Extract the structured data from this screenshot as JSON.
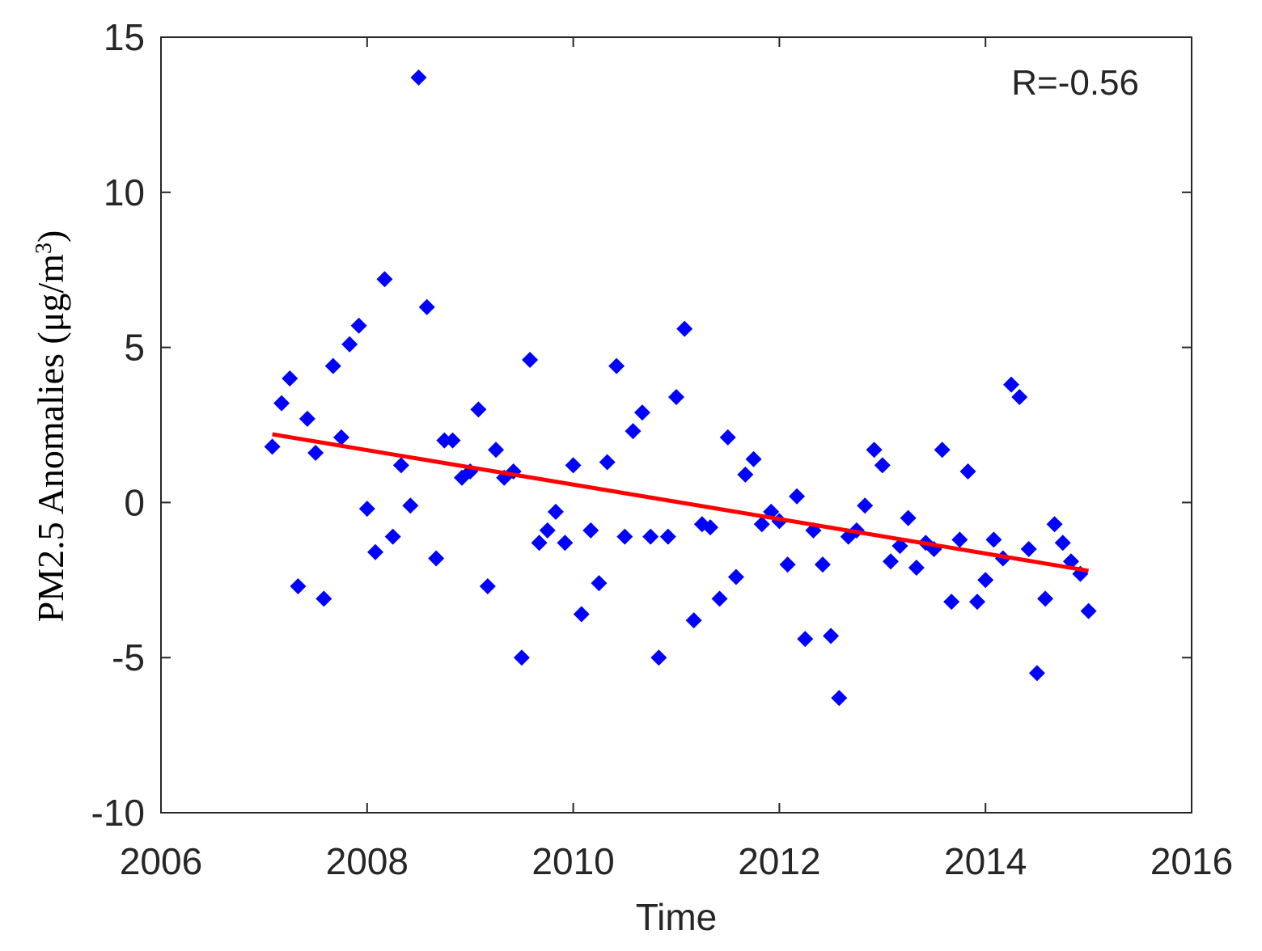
{
  "chart_data": {
    "type": "scatter",
    "title": "",
    "xlabel": "Time",
    "ylabel": {
      "text": "PM2.5 Anomalies (μg/m",
      "superscript": "3",
      "suffix": ")"
    },
    "xlim": [
      2006,
      2016
    ],
    "ylim": [
      -10,
      15
    ],
    "xticks": [
      "2006",
      "2008",
      "2010",
      "2012",
      "2014",
      "2016"
    ],
    "yticks": [
      "-10",
      "-5",
      "0",
      "5",
      "10",
      "15"
    ],
    "grid": false,
    "annotation": "R=-0.56",
    "colors": {
      "points": "#0000ff",
      "trend": "#ff0000",
      "axes": "#262626"
    },
    "series": [
      {
        "type": "scatter",
        "marker": "diamond",
        "x": [
          2007.08,
          2007.17,
          2007.25,
          2007.33,
          2007.42,
          2007.5,
          2007.58,
          2007.67,
          2007.75,
          2007.83,
          2007.92,
          2008.0,
          2008.08,
          2008.17,
          2008.25,
          2008.33,
          2008.42,
          2008.5,
          2008.58,
          2008.67,
          2008.75,
          2008.83,
          2008.92,
          2009.0,
          2009.08,
          2009.17,
          2009.25,
          2009.33,
          2009.42,
          2009.5,
          2009.58,
          2009.67,
          2009.75,
          2009.83,
          2009.92,
          2010.0,
          2010.08,
          2010.17,
          2010.25,
          2010.33,
          2010.42,
          2010.5,
          2010.58,
          2010.67,
          2010.75,
          2010.83,
          2010.92,
          2011.0,
          2011.08,
          2011.17,
          2011.25,
          2011.33,
          2011.42,
          2011.5,
          2011.58,
          2011.67,
          2011.75,
          2011.83,
          2011.92,
          2012.0,
          2012.08,
          2012.17,
          2012.25,
          2012.33,
          2012.42,
          2012.5,
          2012.58,
          2012.67,
          2012.75,
          2012.83,
          2012.92,
          2013.0,
          2013.08,
          2013.17,
          2013.25,
          2013.33,
          2013.42,
          2013.5,
          2013.58,
          2013.67,
          2013.75,
          2013.83,
          2013.92,
          2014.0,
          2014.08,
          2014.17,
          2014.25,
          2014.33,
          2014.42,
          2014.5,
          2014.58,
          2014.67,
          2014.75,
          2014.83,
          2014.92,
          2015.0
        ],
        "y": [
          1.8,
          3.2,
          4.0,
          -2.7,
          2.7,
          1.6,
          -3.1,
          4.4,
          2.1,
          5.1,
          5.7,
          -0.2,
          -1.6,
          7.2,
          -1.1,
          1.2,
          -0.1,
          13.7,
          6.3,
          -1.8,
          2.0,
          2.0,
          0.8,
          1.0,
          3.0,
          -2.7,
          1.7,
          0.8,
          1.0,
          -5.0,
          4.6,
          -1.3,
          -0.9,
          -0.3,
          -1.3,
          1.2,
          -3.6,
          -0.9,
          -2.6,
          1.3,
          4.4,
          -1.1,
          2.3,
          2.9,
          -1.1,
          -5.0,
          -1.1,
          3.4,
          5.6,
          -3.8,
          -0.7,
          -0.8,
          -3.1,
          2.1,
          -2.4,
          0.9,
          1.4,
          -0.7,
          -0.3,
          -0.6,
          -2.0,
          0.2,
          -4.4,
          -0.9,
          -2.0,
          -4.3,
          -6.3,
          -1.1,
          -0.9,
          -0.1,
          1.7,
          1.2,
          -1.9,
          -1.4,
          -0.5,
          -2.1,
          -1.3,
          -1.5,
          1.7,
          -3.2,
          -1.2,
          1.0,
          -3.2,
          -2.5,
          -1.2,
          -1.8,
          3.8,
          3.4,
          -1.5,
          -5.5,
          -3.1,
          -0.7,
          -1.3,
          -1.9,
          -2.3,
          -3.5
        ]
      },
      {
        "type": "line",
        "x": [
          2007.08,
          2015.0
        ],
        "y": [
          2.2,
          -2.2
        ]
      }
    ]
  }
}
